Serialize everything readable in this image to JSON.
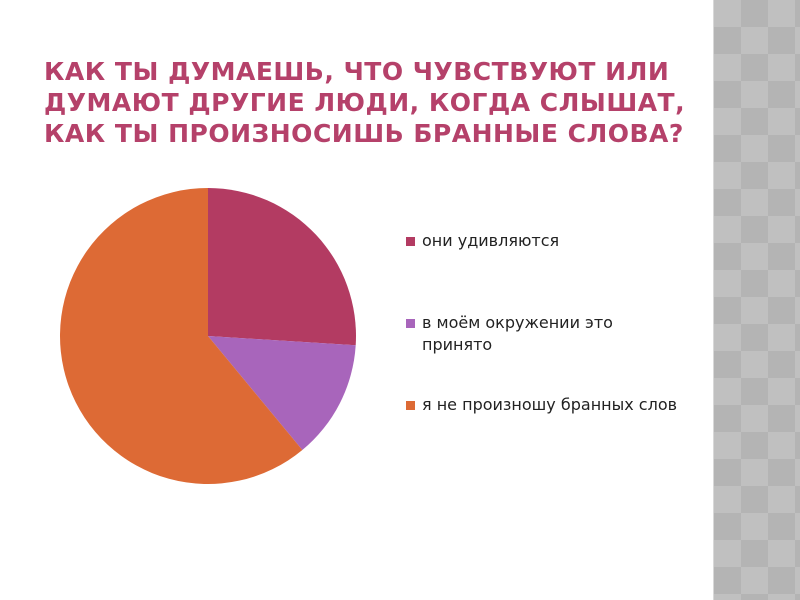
{
  "title": "КАК ТЫ ДУМАЕШЬ, ЧТО ЧУВСТВУЮТ ИЛИ ДУМАЮТ ДРУГИЕ ЛЮДИ, КОГДА СЛЫШАТ, КАК ТЫ ПРОИЗНОСИШЬ БРАННЫЕ СЛОВА?",
  "chart_data": {
    "type": "pie",
    "title": "",
    "categories": [
      "они удивляются",
      "в моём окружении это принято",
      "я не произношу бранных слов"
    ],
    "values": [
      26,
      13,
      61
    ],
    "colors": [
      "#b33b62",
      "#a865bb",
      "#dd6a35"
    ],
    "legend_placement": "right"
  }
}
